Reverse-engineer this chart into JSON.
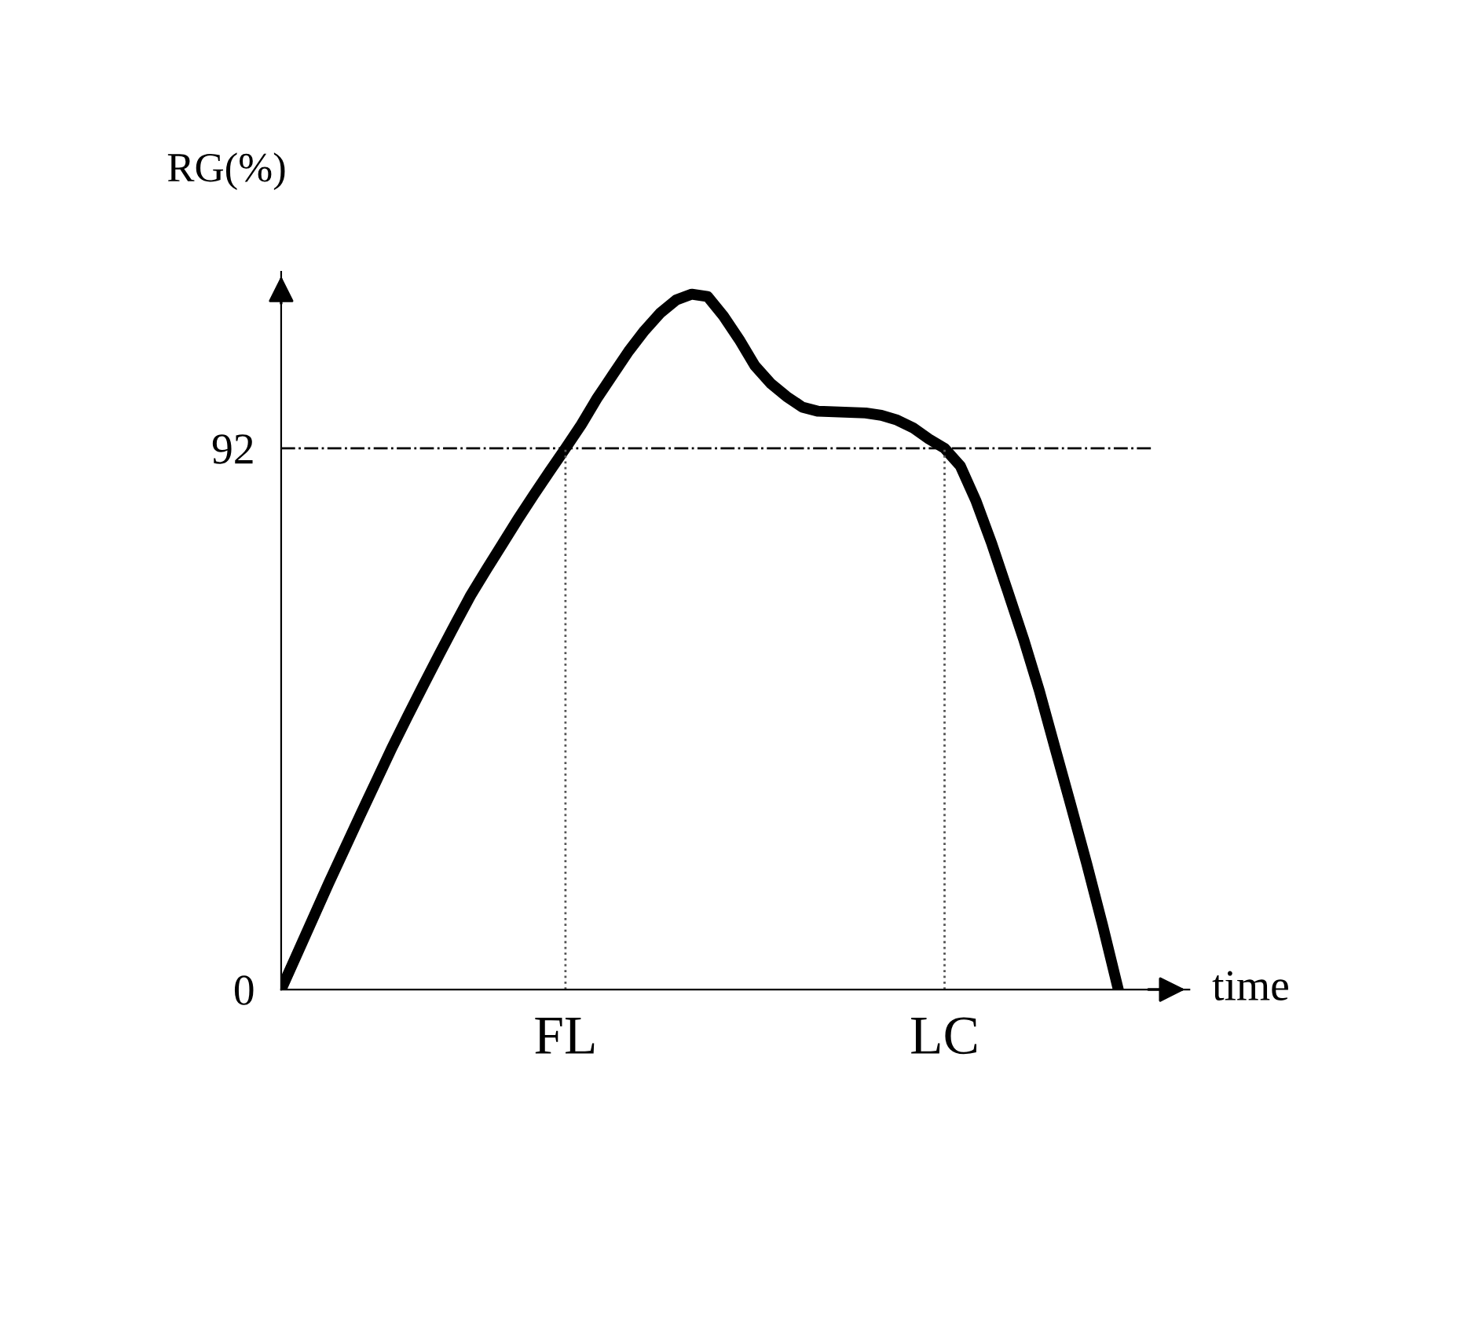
{
  "chart_data": {
    "type": "line",
    "xlabel": "time",
    "ylabel": "RG(%)",
    "categories": [
      null,
      null,
      null,
      null,
      null,
      null,
      null,
      null,
      null,
      null,
      null,
      null,
      null,
      null,
      null,
      null,
      null,
      null,
      "FL",
      null,
      null,
      null,
      null,
      null,
      null,
      null,
      null,
      null,
      null,
      null,
      null,
      null,
      null,
      null,
      null,
      null,
      null,
      null,
      null,
      null,
      null,
      null,
      "LC",
      null,
      null,
      null,
      null,
      null,
      null,
      null,
      null,
      null,
      null,
      null
    ],
    "series": [
      {
        "color": "#000000",
        "values": [
          0,
          6,
          12,
          18,
          23.8,
          29.6,
          35.3,
          41,
          46.4,
          51.7,
          56.9,
          62,
          67,
          71.4,
          75.7,
          80,
          84.1,
          88.1,
          92,
          96,
          100.5,
          104.5,
          108.5,
          112,
          115,
          117.2,
          118.2,
          117.8,
          114.5,
          110.5,
          106,
          103,
          100.8,
          99,
          98.3,
          98.2,
          98.1,
          98,
          97.6,
          96.8,
          95.5,
          93.6,
          92,
          89,
          83,
          75.7,
          67.7,
          59.6,
          50.8,
          41,
          31.3,
          21.4,
          11,
          0
        ]
      }
    ],
    "ylim": [
      0,
      122
    ],
    "yticks": [
      0,
      92
    ],
    "ref_lines": [
      {
        "axis": "y",
        "value": 92,
        "line_style": "dashed",
        "color": "#000000"
      },
      {
        "axis": "x",
        "value": "FL",
        "line_style": "dotted",
        "color": "#555555"
      },
      {
        "axis": "x",
        "value": "LC",
        "line_style": "dotted",
        "color": "#555555"
      }
    ],
    "grid": false,
    "legend": false,
    "marker": "none",
    "line_style": "solid"
  }
}
